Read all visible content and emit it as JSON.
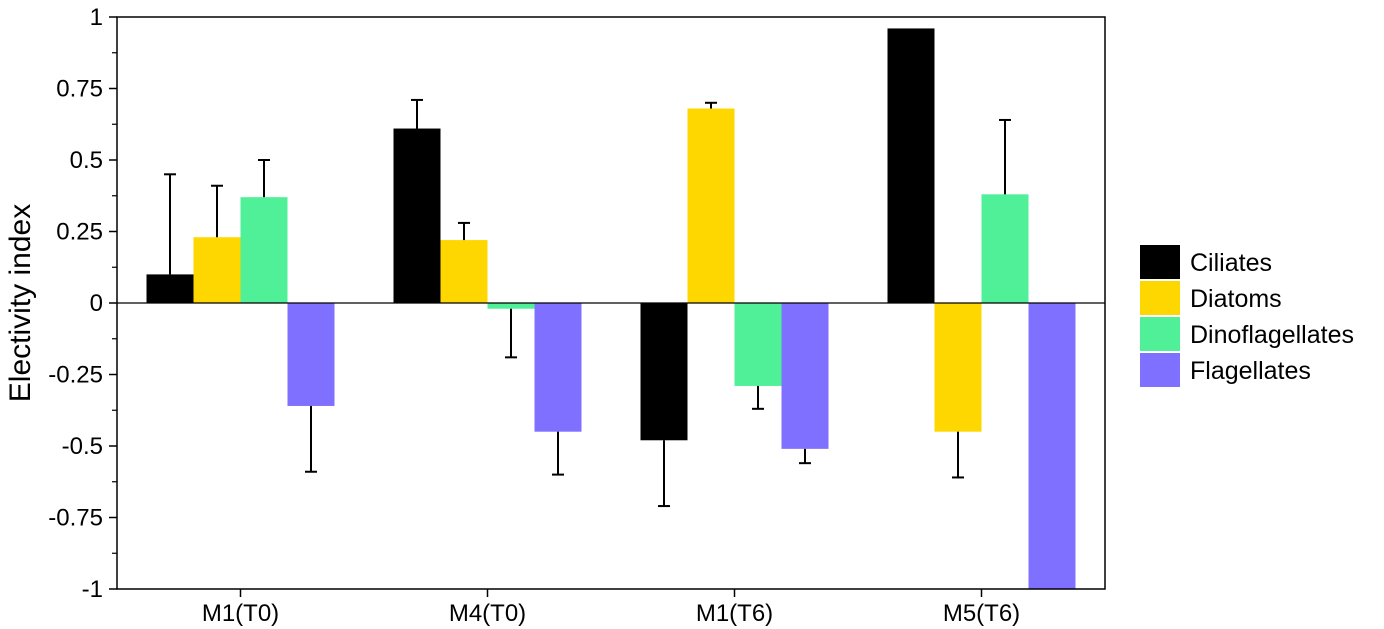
{
  "chart_data": {
    "type": "bar",
    "title": "",
    "xlabel": "",
    "ylabel": "Electivity index",
    "ylim": [
      -1,
      1
    ],
    "yticks": [
      {
        "value": 1,
        "label": "1"
      },
      {
        "value": 0.75,
        "label": "0.75"
      },
      {
        "value": 0.5,
        "label": "0.5"
      },
      {
        "value": 0.25,
        "label": "0.25"
      },
      {
        "value": 0,
        "label": "0"
      },
      {
        "value": -0.25,
        "label": "-0.25"
      },
      {
        "value": -0.5,
        "label": "-0.5"
      },
      {
        "value": -0.75,
        "label": "-0.75"
      },
      {
        "value": -1,
        "label": "-1"
      }
    ],
    "categories": [
      "M1(T0)",
      "M4(T0)",
      "M1(T6)",
      "M5(T6)"
    ],
    "series": [
      {
        "name": "Ciliates",
        "color": "#000000",
        "values": [
          0.1,
          0.61,
          -0.48,
          0.96
        ],
        "errors": [
          0.35,
          0.1,
          0.23,
          0.0
        ]
      },
      {
        "name": "Diatoms",
        "color": "#FFD700",
        "values": [
          0.23,
          0.22,
          0.68,
          -0.45
        ],
        "errors": [
          0.18,
          0.06,
          0.02,
          0.16
        ]
      },
      {
        "name": "Dinoflagellates",
        "color": "#4FF097",
        "values": [
          0.37,
          -0.02,
          -0.29,
          0.38
        ],
        "errors": [
          0.13,
          0.17,
          0.08,
          0.26
        ]
      },
      {
        "name": "Flagellates",
        "color": "#8070FF",
        "values": [
          -0.36,
          -0.45,
          -0.51,
          -1.0
        ],
        "errors": [
          0.23,
          0.15,
          0.05,
          0.0
        ]
      }
    ],
    "grid": false,
    "legend_position": "right"
  }
}
